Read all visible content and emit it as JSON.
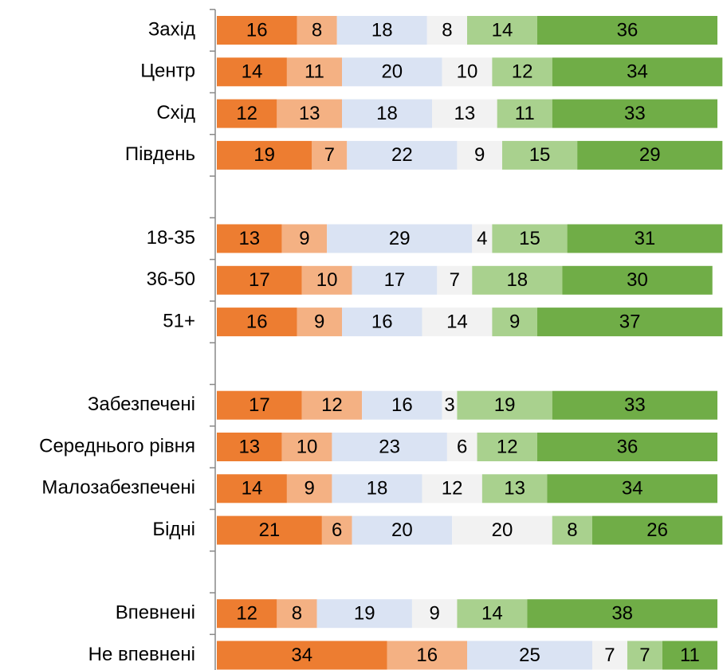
{
  "chart_data": {
    "type": "stacked-barh",
    "categories": [
      "Захід",
      "Центр",
      "Схід",
      "Південь",
      null,
      "18-35",
      "36-50",
      "51+",
      null,
      "Забезпечені",
      "Середнього рівня",
      "Малозабезпечені",
      "Бідні",
      null,
      "Впевнені",
      "Не впевнені"
    ],
    "series": [
      {
        "color": "#ed7d31",
        "values": [
          16,
          14,
          12,
          19,
          null,
          13,
          17,
          16,
          null,
          17,
          13,
          14,
          21,
          null,
          12,
          34
        ]
      },
      {
        "color": "#f4b183",
        "values": [
          8,
          11,
          13,
          7,
          null,
          9,
          10,
          9,
          null,
          12,
          10,
          9,
          6,
          null,
          8,
          16
        ]
      },
      {
        "color": "#dae3f3",
        "values": [
          18,
          20,
          18,
          22,
          null,
          29,
          17,
          16,
          null,
          16,
          23,
          18,
          20,
          null,
          19,
          25
        ]
      },
      {
        "color": "#f2f2f2",
        "values": [
          8,
          10,
          13,
          9,
          null,
          4,
          7,
          14,
          null,
          3,
          6,
          12,
          20,
          null,
          9,
          7
        ]
      },
      {
        "color": "#a9d18e",
        "values": [
          14,
          12,
          11,
          15,
          null,
          15,
          18,
          9,
          null,
          19,
          12,
          13,
          8,
          null,
          14,
          7
        ]
      },
      {
        "color": "#70ad47",
        "values": [
          36,
          34,
          33,
          29,
          null,
          31,
          30,
          37,
          null,
          33,
          36,
          34,
          26,
          null,
          38,
          11
        ]
      }
    ],
    "xlim": [
      0,
      100
    ]
  }
}
